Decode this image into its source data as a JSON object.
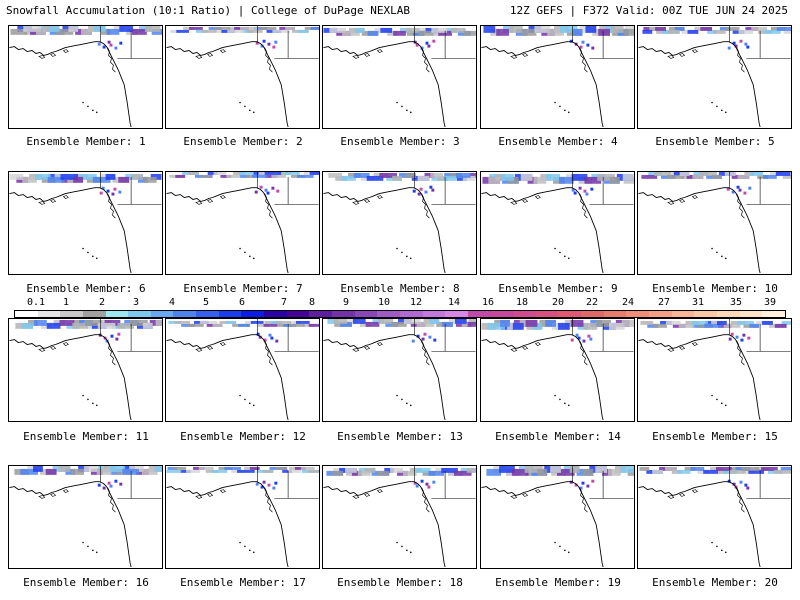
{
  "header": {
    "left": "Snowfall Accumulation (10:1 Ratio) | College of DuPage NEXLAB",
    "right": "12Z GEFS | F372 Valid: 00Z TUE JUN 24 2025"
  },
  "legend": {
    "labels": [
      "0.1",
      "1",
      "2",
      "3",
      "4",
      "5",
      "6",
      "7",
      "8",
      "9",
      "10",
      "12",
      "14",
      "16",
      "18",
      "20",
      "22",
      "24",
      "27",
      "31",
      "35",
      "39"
    ],
    "colors": [
      "#ffffff",
      "#e6e6e6",
      "#c8c8c8",
      "#a0a0a0",
      "#9fe8f0",
      "#7fc8f0",
      "#6aa8f0",
      "#4f84f0",
      "#3860f0",
      "#1c3cf0",
      "#0c1ce6",
      "#2a00a8",
      "#46009a",
      "#5e1ea0",
      "#7432a8",
      "#8a46b4",
      "#a05ac4",
      "#b26ad2",
      "#c478de",
      "#d888e4",
      "#c04aa8",
      "#c8469a",
      "#d04c8e",
      "#d85080",
      "#e05872",
      "#e06868",
      "#e87a70",
      "#f08c7c",
      "#f4a088",
      "#f8b498",
      "#fac8a8",
      "#fcd8b8",
      "#fde4c8",
      "#fef0dc"
    ]
  },
  "members": [
    {
      "label": "Ensemble Member: 1"
    },
    {
      "label": "Ensemble Member: 2"
    },
    {
      "label": "Ensemble Member: 3"
    },
    {
      "label": "Ensemble Member: 4"
    },
    {
      "label": "Ensemble Member: 5"
    },
    {
      "label": "Ensemble Member: 6"
    },
    {
      "label": "Ensemble Member: 7"
    },
    {
      "label": "Ensemble Member: 8"
    },
    {
      "label": "Ensemble Member: 9"
    },
    {
      "label": "Ensemble Member: 10"
    },
    {
      "label": "Ensemble Member: 11"
    },
    {
      "label": "Ensemble Member: 12"
    },
    {
      "label": "Ensemble Member: 13"
    },
    {
      "label": "Ensemble Member: 14"
    },
    {
      "label": "Ensemble Member: 15"
    },
    {
      "label": "Ensemble Member: 16"
    },
    {
      "label": "Ensemble Member: 17"
    },
    {
      "label": "Ensemble Member: 18"
    },
    {
      "label": "Ensemble Member: 19"
    },
    {
      "label": "Ensemble Member: 20"
    }
  ]
}
